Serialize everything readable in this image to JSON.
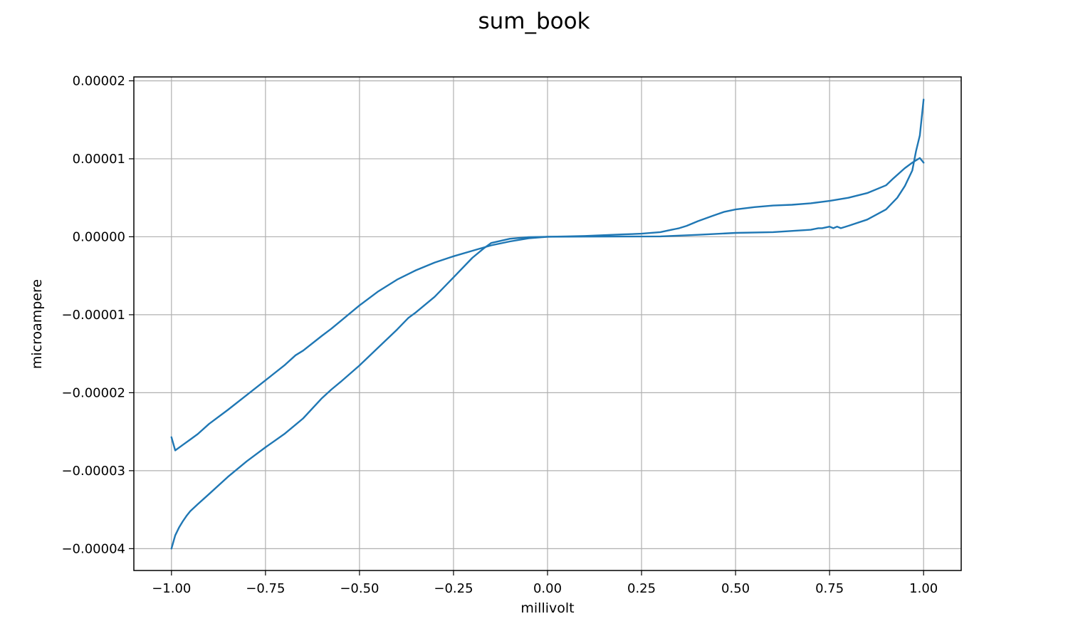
{
  "chart_data": {
    "type": "line",
    "title": "sum_book",
    "xlabel": "millivolt",
    "ylabel": "microampere",
    "xlim": [
      -1.1,
      1.1
    ],
    "ylim": [
      -4.28e-05,
      2.05e-05
    ],
    "grid": true,
    "x_ticks": [
      -1.0,
      -0.75,
      -0.5,
      -0.25,
      0.0,
      0.25,
      0.5,
      0.75,
      1.0
    ],
    "x_tick_labels": [
      "−1.00",
      "−0.75",
      "−0.50",
      "−0.25",
      "0.00",
      "0.25",
      "0.50",
      "0.75",
      "1.00"
    ],
    "y_ticks": [
      2e-05,
      1e-05,
      0.0,
      -1e-05,
      -2e-05,
      -3e-05,
      -4e-05
    ],
    "y_tick_labels": [
      "0.00002",
      "0.00001",
      "0.00000",
      "−0.00001",
      "−0.00002",
      "−0.00003",
      "−0.00004"
    ],
    "color": "#1f77b4",
    "series": [
      {
        "x": [
          -1.0,
          -0.99,
          -0.98,
          -0.97,
          -0.96,
          -0.95,
          -0.93,
          -0.9,
          -0.85,
          -0.8,
          -0.75,
          -0.7,
          -0.67,
          -0.65,
          -0.6,
          -0.575,
          -0.55,
          -0.5,
          -0.45,
          -0.4,
          -0.37,
          -0.35,
          -0.3,
          -0.25,
          -0.2,
          -0.17,
          -0.15,
          -0.1,
          -0.05,
          0.0,
          0.05,
          0.1,
          0.2,
          0.3,
          0.4,
          0.5,
          0.6,
          0.7,
          0.72,
          0.73,
          0.75,
          0.76,
          0.77,
          0.78,
          0.8,
          0.85,
          0.9,
          0.93,
          0.95,
          0.97,
          0.98,
          0.99,
          1.0
        ],
        "y": [
          -4e-05,
          -3.83e-05,
          -3.73e-05,
          -3.65e-05,
          -3.58e-05,
          -3.52e-05,
          -3.43e-05,
          -3.3e-05,
          -3.08e-05,
          -2.88e-05,
          -2.7e-05,
          -2.53e-05,
          -2.41e-05,
          -2.33e-05,
          -2.07e-05,
          -1.96e-05,
          -1.86e-05,
          -1.65e-05,
          -1.42e-05,
          -1.19e-05,
          -1.04e-05,
          -9.7e-06,
          -7.7e-06,
          -5.2e-06,
          -2.7e-06,
          -1.5e-06,
          -8e-07,
          -2.5e-07,
          -5e-08,
          0.0,
          1e-08,
          2e-08,
          3e-08,
          5e-08,
          2.5e-07,
          5e-07,
          6e-07,
          9e-07,
          1.1e-06,
          1.1e-06,
          1.3e-06,
          1.1e-06,
          1.3e-06,
          1.1e-06,
          1.4e-06,
          2.2e-06,
          3.5e-06,
          5e-06,
          6.5e-06,
          8.5e-06,
          1.1e-05,
          1.3e-05,
          1.76e-05
        ]
      },
      {
        "x": [
          1.0,
          0.99,
          0.97,
          0.95,
          0.92,
          0.9,
          0.85,
          0.8,
          0.75,
          0.7,
          0.65,
          0.6,
          0.55,
          0.5,
          0.47,
          0.44,
          0.4,
          0.37,
          0.35,
          0.34,
          0.33,
          0.3,
          0.25,
          0.2,
          0.15,
          0.1,
          0.05,
          0.0,
          -0.05,
          -0.1,
          -0.15,
          -0.2,
          -0.25,
          -0.3,
          -0.35,
          -0.4,
          -0.45,
          -0.5,
          -0.55,
          -0.575,
          -0.6,
          -0.65,
          -0.67,
          -0.7,
          -0.75,
          -0.8,
          -0.85,
          -0.9,
          -0.93,
          -0.95,
          -0.97,
          -0.99,
          -1.0
        ],
        "y": [
          9.5e-06,
          1.01e-05,
          9.5e-06,
          8.8e-06,
          7.5e-06,
          6.6e-06,
          5.6e-06,
          5e-06,
          4.6e-06,
          4.3e-06,
          4.1e-06,
          4e-06,
          3.8e-06,
          3.5e-06,
          3.2e-06,
          2.7e-06,
          2e-06,
          1.4e-06,
          1.1e-06,
          1e-06,
          9e-07,
          6e-07,
          4e-07,
          3e-07,
          2e-07,
          1e-07,
          5e-08,
          0.0,
          -2e-07,
          -6e-07,
          -1.1e-06,
          -1.8e-06,
          -2.5e-06,
          -3.3e-06,
          -4.3e-06,
          -5.5e-06,
          -7e-06,
          -8.8e-06,
          -1.08e-05,
          -1.18e-05,
          -1.27e-05,
          -1.46e-05,
          -1.52e-05,
          -1.65e-05,
          -1.84e-05,
          -2.03e-05,
          -2.22e-05,
          -2.4e-05,
          -2.53e-05,
          -2.6e-05,
          -2.67e-05,
          -2.74e-05,
          -2.57e-05
        ]
      }
    ]
  }
}
